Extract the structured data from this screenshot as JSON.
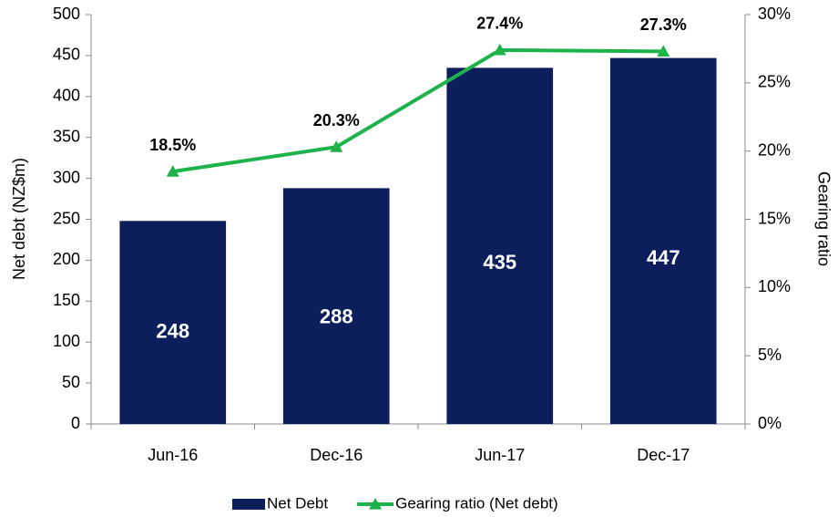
{
  "chart_data": {
    "type": "combo",
    "categories": [
      "Jun-16",
      "Dec-16",
      "Jun-17",
      "Dec-17"
    ],
    "series": [
      {
        "name": "Net Debt",
        "type": "bar",
        "color": "#0c1f5c",
        "values": [
          248,
          288,
          435,
          447
        ]
      },
      {
        "name": "Gearing ratio (Net debt)",
        "type": "line",
        "axis": "y2",
        "color": "#1db34a",
        "values": [
          18.5,
          20.3,
          27.4,
          27.3
        ],
        "value_labels": [
          "18.5%",
          "20.3%",
          "27.4%",
          "27.3%"
        ]
      }
    ],
    "ylabel": "Net debt (NZ$m)",
    "y2label": "Gearing ratio",
    "ylim": [
      0,
      500
    ],
    "yticks": [
      0,
      50,
      100,
      150,
      200,
      250,
      300,
      350,
      400,
      450,
      500
    ],
    "y2lim": [
      0,
      30
    ],
    "y2ticks": [
      {
        "value": 0,
        "label": "0%"
      },
      {
        "value": 5,
        "label": "5%"
      },
      {
        "value": 10,
        "label": "10%"
      },
      {
        "value": 15,
        "label": "15%"
      },
      {
        "value": 20,
        "label": "20%"
      },
      {
        "value": 25,
        "label": "25%"
      },
      {
        "value": 30,
        "label": "30%"
      }
    ],
    "grid": false,
    "legend": "bottom"
  }
}
